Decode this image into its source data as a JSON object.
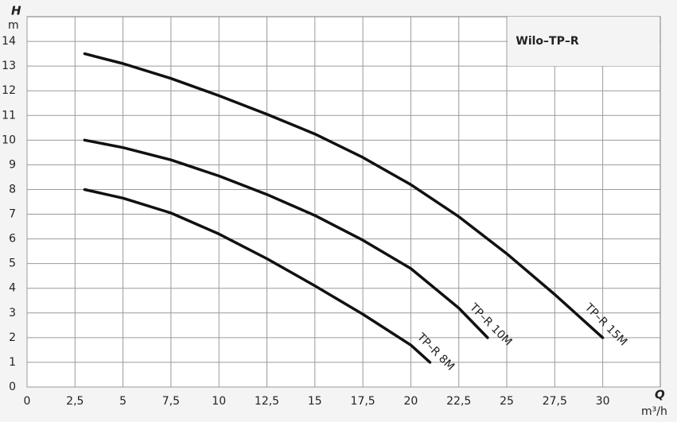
{
  "chart_data": {
    "type": "line",
    "title": "Wilo–TP–R",
    "y_label": "H",
    "y_unit": "m",
    "x_label": "Q",
    "x_unit": "m³/h",
    "xlim": [
      0,
      33
    ],
    "ylim": [
      0,
      15
    ],
    "xticks": [
      0,
      {
        "value": 2.5,
        "label": "2,5"
      },
      5,
      {
        "value": 7.5,
        "label": "7,5"
      },
      10,
      {
        "value": 12.5,
        "label": "12,5"
      },
      15,
      {
        "value": 17.5,
        "label": "17,5"
      },
      20,
      {
        "value": 22.5,
        "label": "22,5"
      },
      25,
      {
        "value": 27.5,
        "label": "27,5"
      },
      30
    ],
    "yticks": [
      0,
      1,
      2,
      3,
      4,
      5,
      6,
      7,
      8,
      9,
      10,
      11,
      12,
      13,
      14
    ],
    "grid": true,
    "series": [
      {
        "name": "TP–R 15M",
        "color": "#111111",
        "x": [
          3,
          5,
          7.5,
          10,
          12.5,
          15,
          17.5,
          20,
          22.5,
          25,
          27.5,
          30
        ],
        "values": [
          13.5,
          13.1,
          12.5,
          11.8,
          11.05,
          10.25,
          9.3,
          8.2,
          6.9,
          5.4,
          3.75,
          2.0
        ]
      },
      {
        "name": "TP–R 10M",
        "color": "#111111",
        "x": [
          3,
          5,
          7.5,
          10,
          12.5,
          15,
          17.5,
          20,
          22.5,
          24
        ],
        "values": [
          10.0,
          9.7,
          9.2,
          8.55,
          7.8,
          6.95,
          5.95,
          4.8,
          3.2,
          2.0
        ]
      },
      {
        "name": "TP–R 8M",
        "color": "#111111",
        "x": [
          3,
          5,
          7.5,
          10,
          12.5,
          15,
          17.5,
          20,
          21
        ],
        "values": [
          8.0,
          7.65,
          7.05,
          6.2,
          5.2,
          4.1,
          2.95,
          1.7,
          1.0
        ]
      }
    ]
  }
}
